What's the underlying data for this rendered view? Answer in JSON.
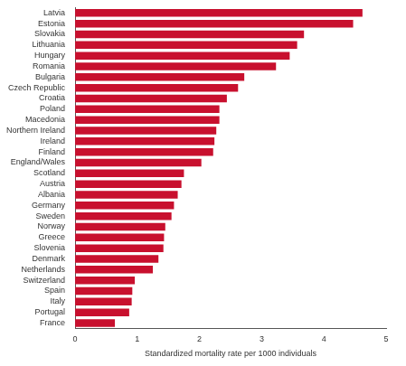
{
  "chart_data": {
    "type": "bar",
    "orientation": "horizontal",
    "x_label": "Standardized mortality rate per 1000 individuals",
    "categories": [
      "Latvia",
      "Estonia",
      "Slovakia",
      "Lithuania",
      "Hungary",
      "Romania",
      "Bulgaria",
      "Czech Republic",
      "Croatia",
      "Poland",
      "Macedonia",
      "Northern Ireland",
      "Ireland",
      "Finland",
      "England/Wales",
      "Scotland",
      "Austria",
      "Albania",
      "Germany",
      "Sweden",
      "Norway",
      "Greece",
      "Slovenia",
      "Denmark",
      "Netherlands",
      "Switzerland",
      "Spain",
      "Italy",
      "Portugal",
      "France"
    ],
    "values": [
      4.62,
      4.47,
      3.68,
      3.57,
      3.45,
      3.23,
      2.72,
      2.62,
      2.44,
      2.32,
      2.32,
      2.27,
      2.24,
      2.22,
      2.03,
      1.75,
      1.71,
      1.65,
      1.59,
      1.55,
      1.45,
      1.43,
      1.42,
      1.34,
      1.25,
      0.96,
      0.92,
      0.91,
      0.87,
      0.64
    ],
    "color": "#c8102e",
    "xlim": [
      0,
      5
    ],
    "xticks": [
      0,
      1,
      2,
      3,
      4,
      5
    ],
    "grid": false
  }
}
